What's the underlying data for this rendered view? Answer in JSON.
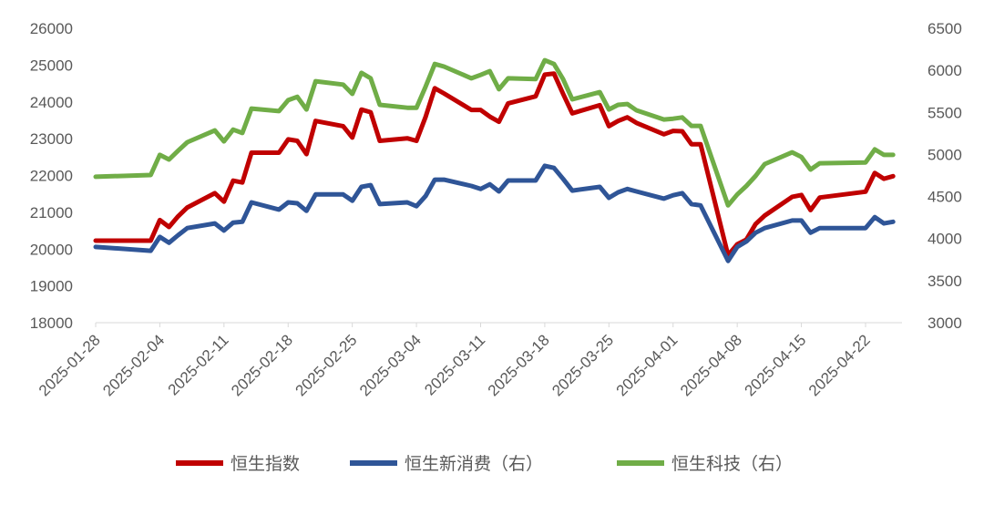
{
  "chart_data": {
    "type": "line",
    "title": "",
    "xlabel": "",
    "ylabel": "",
    "y_left": {
      "min": 18000,
      "max": 26000,
      "step": 1000
    },
    "y_right": {
      "min": 3000,
      "max": 6500,
      "step": 500
    },
    "x_ticks": [
      "2025-01-28",
      "2025-02-04",
      "2025-02-11",
      "2025-02-18",
      "2025-02-25",
      "2025-03-04",
      "2025-03-11",
      "2025-03-18",
      "2025-03-25",
      "2025-04-01",
      "2025-04-08",
      "2025-04-15",
      "2025-04-22"
    ],
    "grid": false,
    "legend_position": "bottom",
    "x": [
      "2025-01-28",
      "2025-02-03",
      "2025-02-04",
      "2025-02-05",
      "2025-02-06",
      "2025-02-07",
      "2025-02-10",
      "2025-02-11",
      "2025-02-12",
      "2025-02-13",
      "2025-02-14",
      "2025-02-17",
      "2025-02-18",
      "2025-02-19",
      "2025-02-20",
      "2025-02-21",
      "2025-02-24",
      "2025-02-25",
      "2025-02-26",
      "2025-02-27",
      "2025-02-28",
      "2025-03-03",
      "2025-03-04",
      "2025-03-05",
      "2025-03-06",
      "2025-03-07",
      "2025-03-10",
      "2025-03-11",
      "2025-03-12",
      "2025-03-13",
      "2025-03-14",
      "2025-03-17",
      "2025-03-18",
      "2025-03-19",
      "2025-03-20",
      "2025-03-21",
      "2025-03-24",
      "2025-03-25",
      "2025-03-26",
      "2025-03-27",
      "2025-03-28",
      "2025-03-31",
      "2025-04-01",
      "2025-04-02",
      "2025-04-03",
      "2025-04-04",
      "2025-04-07",
      "2025-04-08",
      "2025-04-09",
      "2025-04-10",
      "2025-04-11",
      "2025-04-14",
      "2025-04-15",
      "2025-04-16",
      "2025-04-17",
      "2025-04-22",
      "2025-04-23",
      "2025-04-24",
      "2025-04-25"
    ],
    "series": [
      {
        "name": "恒生指数",
        "axis": "left",
        "color": "#C00000",
        "values": [
          20230,
          20230,
          20790,
          20600,
          20890,
          21130,
          21520,
          21290,
          21860,
          21810,
          22620,
          22620,
          22980,
          22940,
          22580,
          23480,
          23340,
          23030,
          23790,
          23720,
          22940,
          23010,
          22940,
          23590,
          24370,
          24230,
          23780,
          23780,
          23600,
          23460,
          23960,
          24150,
          24740,
          24770,
          24220,
          23690,
          23910,
          23340,
          23480,
          23580,
          23430,
          23120,
          23210,
          23200,
          22850,
          22850,
          19830,
          20130,
          20260,
          20680,
          20910,
          21420,
          21470,
          21060,
          21400,
          21560,
          22070,
          21910,
          21980
        ]
      },
      {
        "name": "恒生新消费（右）",
        "axis": "right",
        "color": "#2F5597",
        "values": [
          3900,
          3855,
          4020,
          3950,
          4040,
          4125,
          4180,
          4095,
          4190,
          4200,
          4430,
          4345,
          4430,
          4420,
          4330,
          4525,
          4525,
          4450,
          4615,
          4635,
          4410,
          4430,
          4385,
          4505,
          4700,
          4700,
          4625,
          4590,
          4645,
          4560,
          4690,
          4690,
          4865,
          4840,
          4710,
          4570,
          4615,
          4485,
          4550,
          4590,
          4560,
          4475,
          4515,
          4540,
          4410,
          4395,
          3735,
          3900,
          3965,
          4070,
          4125,
          4215,
          4215,
          4070,
          4125,
          4125,
          4255,
          4180,
          4200
        ]
      },
      {
        "name": "恒生科技（右）",
        "axis": "right",
        "color": "#70AD47",
        "values": [
          4735,
          4755,
          4995,
          4940,
          5045,
          5145,
          5285,
          5155,
          5295,
          5255,
          5545,
          5515,
          5645,
          5685,
          5535,
          5870,
          5830,
          5720,
          5970,
          5905,
          5590,
          5555,
          5555,
          5805,
          6075,
          6045,
          5905,
          5945,
          5990,
          5775,
          5905,
          5895,
          6120,
          6075,
          5895,
          5655,
          5740,
          5535,
          5590,
          5600,
          5525,
          5415,
          5425,
          5440,
          5340,
          5340,
          4395,
          4525,
          4625,
          4745,
          4885,
          5025,
          4970,
          4820,
          4895,
          4905,
          5060,
          4995,
          4995
        ]
      }
    ]
  }
}
